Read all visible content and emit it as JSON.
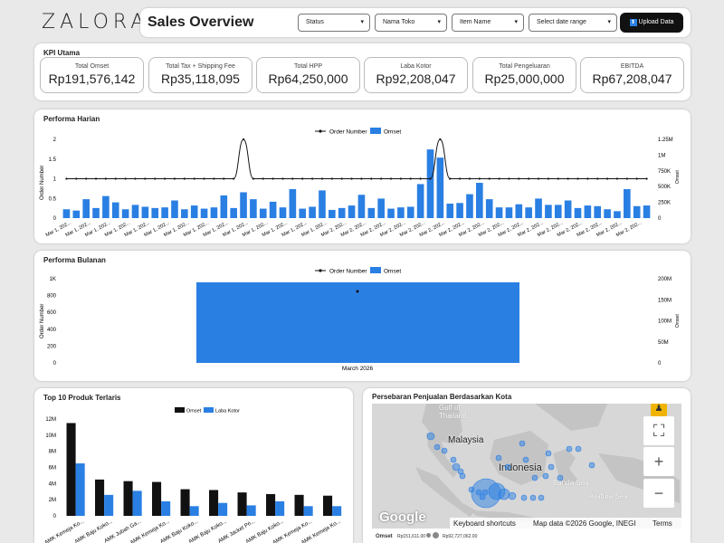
{
  "brand": "ZALORA",
  "header": {
    "title": "Sales Overview",
    "filters": [
      "Status",
      "Nama Toko",
      "Item Name",
      "Select date range"
    ],
    "upload_label": "Upload Data"
  },
  "kpi": {
    "title": "KPI Utama",
    "items": [
      {
        "label": "Total Omset",
        "value": "Rp191,576,142"
      },
      {
        "label": "Total Tax + Shipping Fee",
        "value": "Rp35,118,095"
      },
      {
        "label": "Total HPP",
        "value": "Rp64,250,000"
      },
      {
        "label": "Laba Kotor",
        "value": "Rp92,208,047"
      },
      {
        "label": "Total Pengeluaran",
        "value": "Rp25,000,000"
      },
      {
        "label": "EBITDA",
        "value": "Rp67,208,047"
      }
    ]
  },
  "daily": {
    "title": "Performa Harian",
    "legend": [
      "Order Number",
      "Omset"
    ],
    "ylabel_left": "Order Number",
    "ylabel_right": "Omset",
    "left_ticks": [
      "0",
      "0.5",
      "1",
      "1.5",
      "2"
    ],
    "right_ticks": [
      "0",
      "250K",
      "500K",
      "750K",
      "1M",
      "1.25M"
    ],
    "xtick_labels": [
      "Mar 1, 202...",
      "Mar 1, 202...",
      "Mar 1, 202...",
      "Mar 1, 202...",
      "Mar 1, 202...",
      "Mar 1, 202...",
      "Mar 1, 202...",
      "Mar 1, 202...",
      "Mar 1, 202...",
      "Mar 1, 202...",
      "Mar 1, 202...",
      "Mar 1, 202...",
      "Mar 1, 202...",
      "Mar 1, 202...",
      "Mar 1, 202...",
      "Mar 1, 202...",
      "Mar 1, 202...",
      "Mar 1, 202...",
      "Mar 1, 202...",
      "Mar 1, 202...",
      "Mar 1, 202...",
      "Mar 1, 202...",
      "Mar 1, 202...",
      "Mar 1, 202...",
      "Mar 1, 202...",
      "Mar 1, 202...",
      "Mar 1, 202...",
      "Mar 2, 202...",
      "Mar 2, 202...",
      "Mar 2, 202...",
      "Mar 2, 202...",
      "Mar 2, 202...",
      "Mar 2, 202...",
      "Mar 2, 202...",
      "Mar 2, 202...",
      "Mar 2, 202...",
      "Mar 2, 202...",
      "Mar 2, 202...",
      "Mar 2, 202...",
      "Mar 2, 202...",
      "Mar 2, 202...",
      "Mar 2, 202...",
      "Mar 2, 202...",
      "Mar 2, 202...",
      "Mar 2, 202...",
      "Mar 2, 202...",
      "Mar 2, 202...",
      "Mar 2, 202...",
      "Mar 2, 202...",
      "Mar 2, 202...",
      "Mar 2, 202...",
      "Mar 2, 202...",
      "Mar 2, 202...",
      "Mar 2, 202...",
      "Mar 2, 202...",
      "Mar 2, 202...",
      "Mar 2, 202...",
      "Mar 2, 202...",
      "Mar 2, 202...",
      "Mar 2, 202..."
    ]
  },
  "monthly": {
    "title": "Performa Bulanan",
    "legend": [
      "Order Number",
      "Omset"
    ],
    "ylabel_left": "Order Number",
    "ylabel_right": "Omset",
    "left_ticks": [
      "0",
      "200",
      "400",
      "600",
      "800",
      "1K"
    ],
    "right_ticks": [
      "0",
      "50M",
      "100M",
      "150M",
      "200M"
    ],
    "category": "March 2026"
  },
  "top10": {
    "title": "Top 10 Produk Terlaris",
    "legend": [
      "Omset",
      "Laba Kotor"
    ],
    "ticks": [
      "0",
      "2M",
      "4M",
      "6M",
      "8M",
      "10M",
      "12M"
    ],
    "categories": [
      "AMK Kemeja Ko...",
      "AMK Baju Koko...",
      "AMK Jubah Ga...",
      "AMK Kemeja Ko...",
      "AMK Baju Koko...",
      "AMK Baju Koko...",
      "AMK Jacket Pri...",
      "AMK Baju Koko...",
      "AMK Kemeja Ko...",
      "AMK Kemeja Ko..."
    ]
  },
  "map": {
    "title": "Persebaran Penjualan Berdasarkan Kota",
    "labels": [
      "Gulf of",
      "Thailand",
      "Malaysia",
      "Indonesia",
      "Banda Sea",
      "Arafura Sea"
    ],
    "footer": [
      "Keyboard shortcuts",
      "Map data ©2026 Google, INEGI",
      "Terms"
    ],
    "google": "Google",
    "legend_label": "Omset",
    "legend_min": "Rp151,611.00",
    "legend_max": "Rp92,727,062.00"
  },
  "chart_data": [
    {
      "type": "bar",
      "title": "Performa Harian",
      "xlabel": "",
      "ylabel": "Order Number",
      "ylim": [
        0,
        2
      ],
      "y2lim": [
        0,
        1250000
      ],
      "series": [
        {
          "name": "Omset",
          "axis": "right",
          "values": [
            140000,
            120000,
            300000,
            160000,
            350000,
            250000,
            140000,
            210000,
            180000,
            160000,
            170000,
            280000,
            140000,
            200000,
            150000,
            170000,
            360000,
            160000,
            410000,
            300000,
            150000,
            260000,
            170000,
            460000,
            150000,
            180000,
            440000,
            130000,
            160000,
            200000,
            370000,
            160000,
            310000,
            150000,
            170000,
            180000,
            540000,
            1090000,
            960000,
            230000,
            240000,
            380000,
            560000,
            300000,
            170000,
            170000,
            220000,
            170000,
            310000,
            210000,
            210000,
            280000,
            160000,
            200000,
            190000,
            140000,
            110000,
            460000,
            190000,
            200000
          ]
        },
        {
          "name": "Order Number",
          "axis": "left",
          "values": [
            1,
            1,
            1,
            1,
            1,
            1,
            1,
            1,
            1,
            1,
            1,
            1,
            1,
            1,
            1,
            1,
            1,
            1,
            2,
            1,
            1,
            1,
            1,
            1,
            1,
            1,
            1,
            1,
            1,
            1,
            1,
            1,
            1,
            1,
            1,
            1,
            1,
            1,
            2,
            1,
            1,
            1,
            1,
            1,
            1,
            1,
            1,
            1,
            1,
            1,
            1,
            1,
            1,
            1,
            1,
            1,
            1,
            1,
            1,
            1
          ]
        }
      ]
    },
    {
      "type": "bar",
      "title": "Performa Bulanan",
      "categories": [
        "March 2026"
      ],
      "ylim": [
        0,
        1000
      ],
      "y2lim": [
        0,
        200000000
      ],
      "series": [
        {
          "name": "Omset",
          "axis": "right",
          "values": [
            191576142
          ]
        },
        {
          "name": "Order Number",
          "axis": "left",
          "values": [
            850
          ]
        }
      ]
    },
    {
      "type": "bar",
      "title": "Top 10 Produk Terlaris",
      "categories": [
        "AMK Kemeja Ko...",
        "AMK Baju Koko...",
        "AMK Jubah Ga...",
        "AMK Kemeja Ko...",
        "AMK Baju Koko...",
        "AMK Baju Koko...",
        "AMK Jacket Pri...",
        "AMK Baju Koko...",
        "AMK Kemeja Ko...",
        "AMK Kemeja Ko..."
      ],
      "ylim": [
        0,
        12000000
      ],
      "series": [
        {
          "name": "Omset",
          "values": [
            11500000,
            4500000,
            4300000,
            4200000,
            3300000,
            3200000,
            2900000,
            2700000,
            2600000,
            2500000
          ]
        },
        {
          "name": "Laba Kotor",
          "values": [
            6500000,
            2600000,
            3100000,
            1800000,
            1200000,
            1600000,
            1300000,
            1800000,
            1200000,
            1200000
          ]
        }
      ]
    }
  ],
  "colors": {
    "blue": "#2a7fe3",
    "black": "#111111"
  },
  "icons": [
    "upload-icon",
    "pegman-icon",
    "fullscreen-icon",
    "zoom-in-icon",
    "zoom-out-icon"
  ]
}
